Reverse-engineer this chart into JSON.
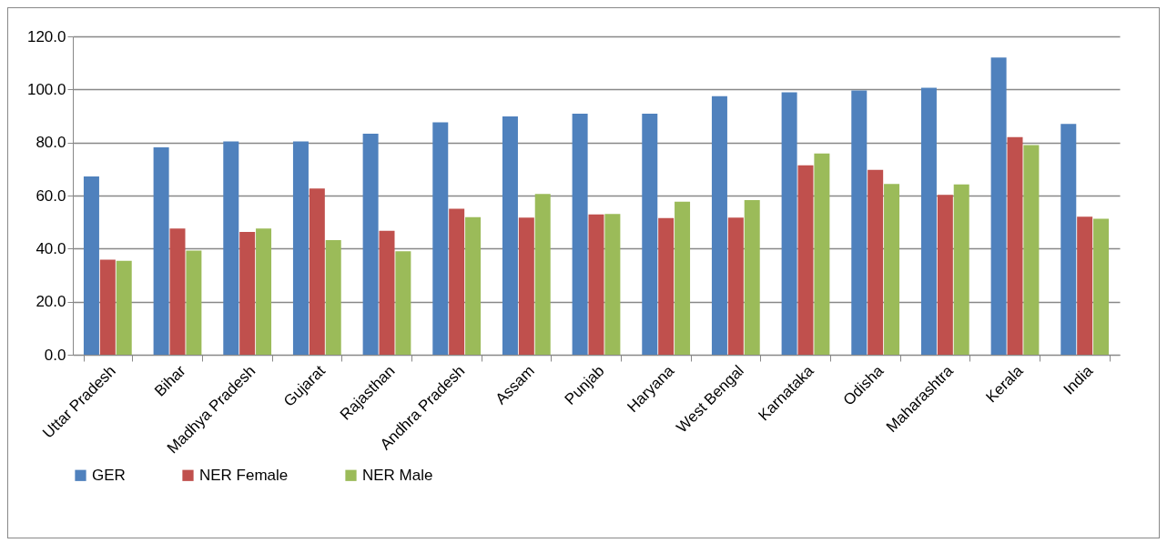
{
  "chart_data": {
    "type": "bar",
    "categories": [
      "Uttar Pradesh",
      "Bihar",
      "Madhya Pradesh",
      "Gujarat",
      "Rajasthan",
      "Andhra Pradesh",
      "Assam",
      "Punjab",
      "Haryana",
      "West Bengal",
      "Karnataka",
      "Odisha",
      "Maharashtra",
      "Kerala",
      "India"
    ],
    "series": [
      {
        "name": "GER",
        "color": "#4f81bd",
        "values": [
          67.2,
          78.2,
          80.4,
          80.4,
          83.3,
          87.6,
          89.8,
          90.9,
          90.9,
          97.5,
          98.9,
          99.6,
          100.6,
          112.0,
          87.0
        ]
      },
      {
        "name": "NER Female",
        "color": "#c0504d",
        "values": [
          35.8,
          47.6,
          46.3,
          62.7,
          46.7,
          55.0,
          51.7,
          52.9,
          51.5,
          51.7,
          71.4,
          69.7,
          60.3,
          82.0,
          52.0
        ]
      },
      {
        "name": "NER Male",
        "color": "#9bbb59",
        "values": [
          35.4,
          39.3,
          47.6,
          43.2,
          39.0,
          51.9,
          60.6,
          53.1,
          57.7,
          58.3,
          75.9,
          64.4,
          64.2,
          79.0,
          51.3
        ]
      }
    ],
    "ylim": [
      0,
      120
    ],
    "yticks": [
      {
        "value": 0,
        "label": "0.0"
      },
      {
        "value": 20,
        "label": "20.0"
      },
      {
        "value": 40,
        "label": "40.0"
      },
      {
        "value": 60,
        "label": "60.0"
      },
      {
        "value": 80,
        "label": "80.0"
      },
      {
        "value": 100,
        "label": "100.0"
      },
      {
        "value": 120,
        "label": "120.0"
      }
    ],
    "grid": "y",
    "legend": "bottom"
  }
}
